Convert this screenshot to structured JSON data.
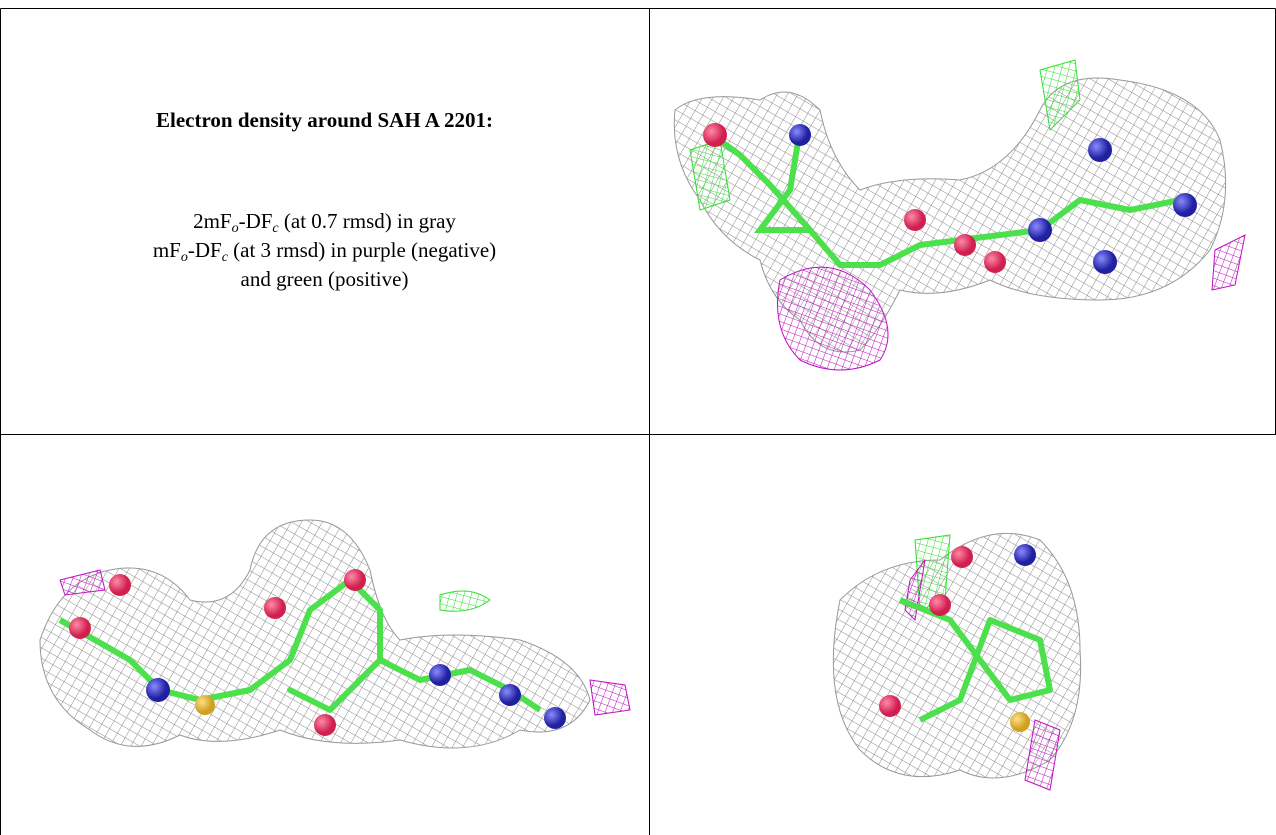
{
  "title": "Electron density around SAH A 2201:",
  "legend_lines": [
    [
      {
        "text": "2mF"
      },
      {
        "text": "o",
        "sub": true
      },
      {
        "text": "-DF"
      },
      {
        "text": "c",
        "sub": true
      },
      {
        "text": " (at 0.7 rmsd) in gray"
      }
    ],
    [
      {
        "text": "mF"
      },
      {
        "text": "o",
        "sub": true
      },
      {
        "text": "-DF"
      },
      {
        "text": "c",
        "sub": true
      },
      {
        "text": " (at 3 rmsd) in purple (negative)"
      }
    ],
    [
      {
        "text": "and green (positive)"
      }
    ]
  ]
}
